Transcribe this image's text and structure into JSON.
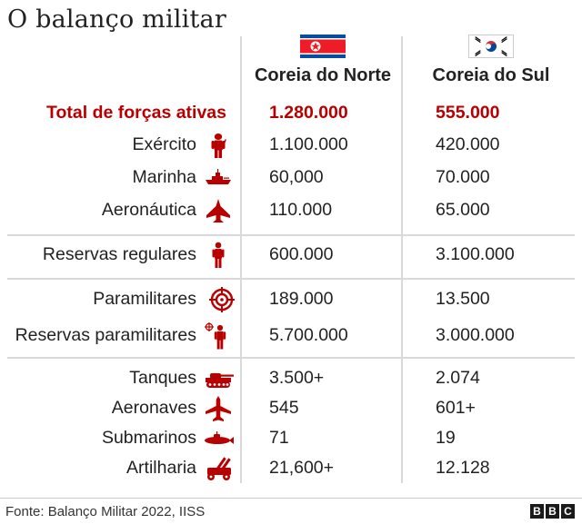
{
  "title": "O balanço militar",
  "columns": {
    "north": "Coreia do Norte",
    "south": "Coreia do Sul"
  },
  "rows": [
    {
      "label": "Total de forças ativas",
      "north": "1.280.000",
      "south": "555.000",
      "icon": "none"
    },
    {
      "label": "Exército",
      "north": "1.100.000",
      "south": "420.000",
      "icon": "soldier-icon"
    },
    {
      "label": "Marinha",
      "north": "60,000",
      "south": "70.000",
      "icon": "warship-icon"
    },
    {
      "label": "Aeronáutica",
      "north": "110.000",
      "south": "65.000",
      "icon": "fighter-jet-icon"
    },
    {
      "label": "Reservas regulares",
      "north": "600.000",
      "south": "3.100.000",
      "icon": "person-icon"
    },
    {
      "label": "Paramilitares",
      "north": "189.000",
      "south": "13.500",
      "icon": "crosshair-icon"
    },
    {
      "label": "Reservas paramilitares",
      "north": "5.700.000",
      "south": "3.000.000",
      "icon": "person-crosshair-icon"
    },
    {
      "label": "Tanques",
      "north": "3.500+",
      "south": "2.074",
      "icon": "tank-icon"
    },
    {
      "label": "Aeronaves",
      "north": "545",
      "south": "601+",
      "icon": "airplane-icon"
    },
    {
      "label": "Submarinos",
      "north": "71",
      "south": "19",
      "icon": "submarine-icon"
    },
    {
      "label": "Artilharia",
      "north": "21,600+",
      "south": "12.128",
      "icon": "artillery-icon"
    }
  ],
  "source": "Fonte: Balanço Militar 2022, IISS",
  "logo": [
    "B",
    "B",
    "C"
  ],
  "colors": {
    "accent": "#b80000",
    "icon": "#b80000",
    "text": "#222222",
    "divider": "#d9d9d9",
    "nk_blue": "#024fa2",
    "nk_red": "#ed1c27"
  }
}
